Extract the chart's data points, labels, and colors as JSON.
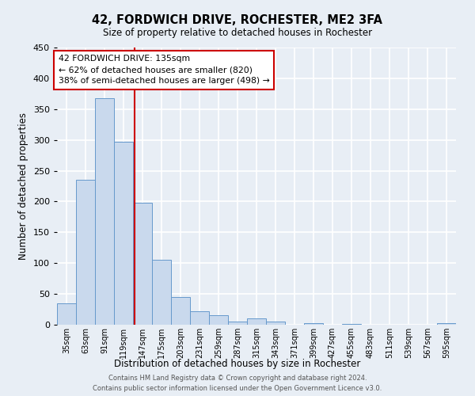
{
  "title": "42, FORDWICH DRIVE, ROCHESTER, ME2 3FA",
  "subtitle": "Size of property relative to detached houses in Rochester",
  "xlabel": "Distribution of detached houses by size in Rochester",
  "ylabel": "Number of detached properties",
  "bar_labels": [
    "35sqm",
    "63sqm",
    "91sqm",
    "119sqm",
    "147sqm",
    "175sqm",
    "203sqm",
    "231sqm",
    "259sqm",
    "287sqm",
    "315sqm",
    "343sqm",
    "371sqm",
    "399sqm",
    "427sqm",
    "455sqm",
    "483sqm",
    "511sqm",
    "539sqm",
    "567sqm",
    "595sqm"
  ],
  "bar_values": [
    35,
    235,
    368,
    297,
    198,
    105,
    45,
    22,
    15,
    5,
    10,
    5,
    0,
    3,
    0,
    1,
    0,
    0,
    0,
    0,
    2
  ],
  "bar_color": "#c9d9ed",
  "bar_edge_color": "#6699cc",
  "background_color": "#e8eef5",
  "grid_color": "#ffffff",
  "ylim": [
    0,
    450
  ],
  "yticks": [
    0,
    50,
    100,
    150,
    200,
    250,
    300,
    350,
    400,
    450
  ],
  "bin_centers": [
    35,
    63,
    91,
    119,
    147,
    175,
    203,
    231,
    259,
    287,
    315,
    343,
    371,
    399,
    427,
    455,
    483,
    511,
    539,
    567,
    595
  ],
  "bin_width": 28,
  "property_sqm": 135,
  "annotation_title": "42 FORDWICH DRIVE: 135sqm",
  "annotation_line1": "← 62% of detached houses are smaller (820)",
  "annotation_line2": "38% of semi-detached houses are larger (498) →",
  "annotation_box_color": "#ffffff",
  "annotation_box_edge": "#cc0000",
  "vline_color": "#cc0000",
  "footer_line1": "Contains HM Land Registry data © Crown copyright and database right 2024.",
  "footer_line2": "Contains public sector information licensed under the Open Government Licence v3.0."
}
